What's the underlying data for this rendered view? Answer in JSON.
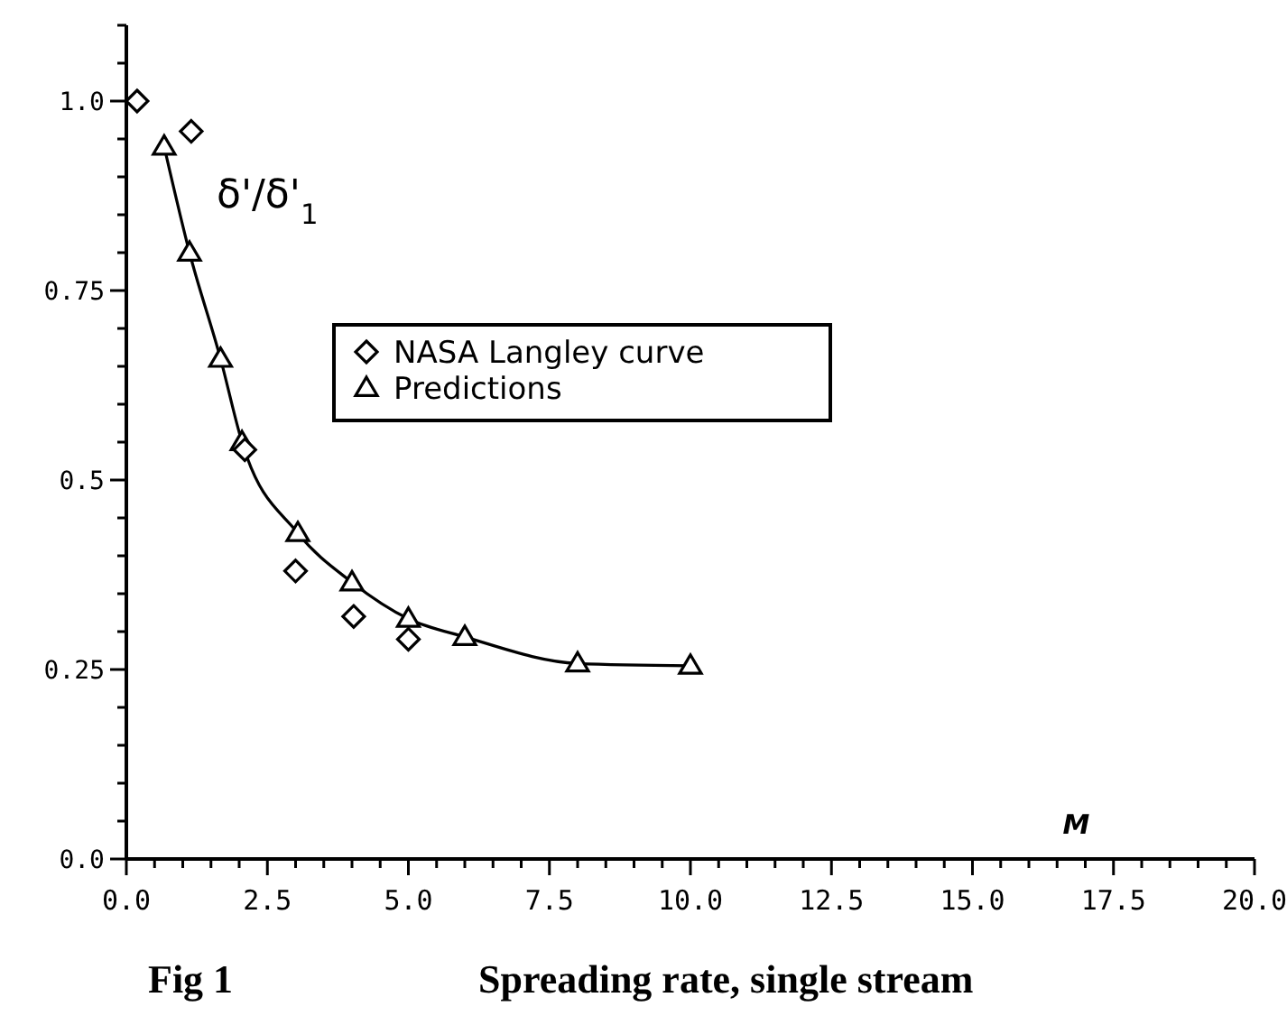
{
  "chart_data": {
    "type": "scatter",
    "title": "Spreading rate, single stream",
    "xlabel": "M",
    "ylabel": "δ'/δ'$_{1}$",
    "annotations": [
      "Fig 1"
    ],
    "xlim": [
      0,
      20
    ],
    "ylim": [
      0,
      1.1
    ],
    "xticks": [
      {
        "value": 0,
        "label": "0.0"
      },
      {
        "value": 0.5,
        "label": null
      },
      {
        "value": 1,
        "label": null
      },
      {
        "value": 1.5,
        "label": null
      },
      {
        "value": 2,
        "label": null
      },
      {
        "value": 2.5,
        "label": "2.5"
      },
      {
        "value": 3,
        "label": null
      },
      {
        "value": 3.5,
        "label": null
      },
      {
        "value": 4,
        "label": null
      },
      {
        "value": 4.5,
        "label": null
      },
      {
        "value": 5,
        "label": "5.0"
      },
      {
        "value": 5.5,
        "label": null
      },
      {
        "value": 6,
        "label": null
      },
      {
        "value": 6.5,
        "label": null
      },
      {
        "value": 7,
        "label": null
      },
      {
        "value": 7.5,
        "label": "7.5"
      },
      {
        "value": 8,
        "label": null
      },
      {
        "value": 8.5,
        "label": null
      },
      {
        "value": 9,
        "label": null
      },
      {
        "value": 9.5,
        "label": null
      },
      {
        "value": 10,
        "label": "10.0"
      },
      {
        "value": 10.5,
        "label": null
      },
      {
        "value": 11,
        "label": null
      },
      {
        "value": 11.5,
        "label": null
      },
      {
        "value": 12,
        "label": null
      },
      {
        "value": 12.5,
        "label": "12.5"
      },
      {
        "value": 13,
        "label": null
      },
      {
        "value": 13.5,
        "label": null
      },
      {
        "value": 14,
        "label": null
      },
      {
        "value": 14.5,
        "label": null
      },
      {
        "value": 15,
        "label": "15.0"
      },
      {
        "value": 15.5,
        "label": null
      },
      {
        "value": 16,
        "label": null
      },
      {
        "value": 16.5,
        "label": null
      },
      {
        "value": 17,
        "label": null
      },
      {
        "value": 17.5,
        "label": "17.5"
      },
      {
        "value": 18,
        "label": null
      },
      {
        "value": 18.5,
        "label": null
      },
      {
        "value": 19,
        "label": null
      },
      {
        "value": 19.5,
        "label": null
      },
      {
        "value": 20,
        "label": "20.0"
      }
    ],
    "yticks": [
      {
        "value": 0,
        "label": "0.0"
      },
      {
        "value": 0.05,
        "label": null
      },
      {
        "value": 0.1,
        "label": null
      },
      {
        "value": 0.15,
        "label": null
      },
      {
        "value": 0.2,
        "label": null
      },
      0.25,
      {
        "value": 0.3,
        "label": null
      },
      {
        "value": 0.35,
        "label": null
      },
      {
        "value": 0.4,
        "label": null
      },
      {
        "value": 0.45,
        "label": null
      },
      0.5,
      {
        "value": 0.55,
        "label": null
      },
      {
        "value": 0.6,
        "label": null
      },
      {
        "value": 0.65,
        "label": null
      },
      {
        "value": 0.7,
        "label": null
      },
      0.75,
      {
        "value": 0.8,
        "label": null
      },
      {
        "value": 0.85,
        "label": null
      },
      {
        "value": 0.9,
        "label": null
      },
      {
        "value": 0.95,
        "label": null
      },
      {
        "value": 1,
        "label": "1.0"
      },
      {
        "value": 1.05,
        "label": null
      },
      {
        "value": 1.1,
        "label": null
      }
    ],
    "grid": false,
    "legend": "top",
    "series": [
      {
        "name": "NASA Langley curve",
        "marker": "diamond",
        "color": "#000000",
        "x": [
          0.19,
          1.15,
          2.1,
          3.0,
          4.03,
          5.0
        ],
        "values": [
          1.0,
          0.96,
          0.54,
          0.38,
          0.32,
          0.29
        ]
      },
      {
        "name": "Predictions",
        "type": "line",
        "marker": "triangle",
        "line_style": "solid",
        "color": "#000000",
        "x": [
          0.67,
          1.12,
          1.67,
          2.05,
          3.04,
          4.0,
          5.0,
          6.0,
          8.0,
          10.0
        ],
        "values": [
          0.94,
          0.8,
          0.66,
          0.55,
          0.43,
          0.365,
          0.317,
          0.293,
          0.258,
          0.255
        ]
      }
    ]
  }
}
